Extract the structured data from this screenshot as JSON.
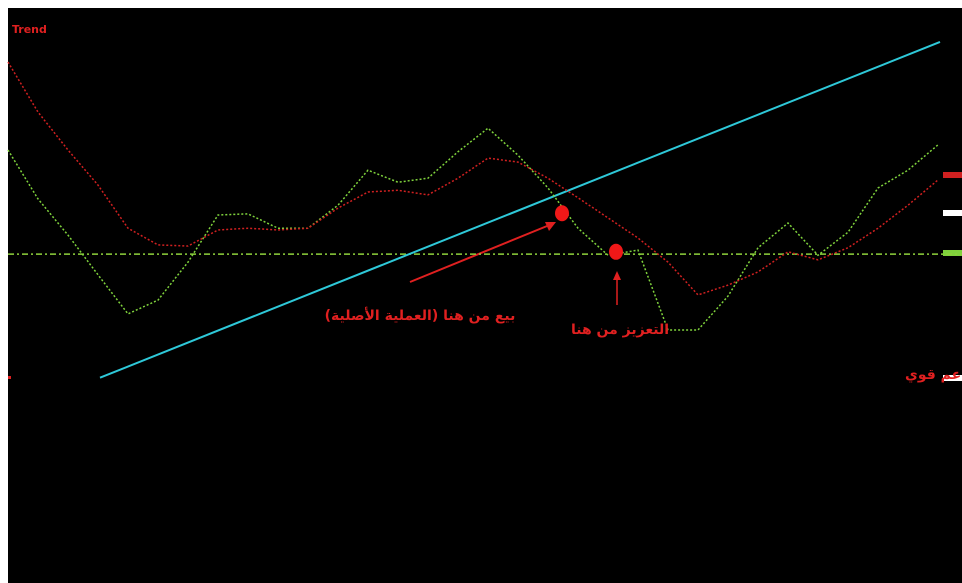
{
  "chart_data": {
    "type": "line",
    "title": "Trend",
    "title_color": "#e02020",
    "ylim": [
      0,
      100
    ],
    "categories": [
      null,
      null,
      null,
      null,
      null,
      null,
      null,
      null,
      null,
      null,
      null,
      null,
      null,
      null,
      null,
      null,
      null,
      null,
      null,
      null,
      null,
      null,
      null,
      null,
      null,
      null,
      null,
      null,
      null,
      null,
      null,
      null
    ],
    "series": [
      {
        "color": "#7fd23c",
        "values": [
          75.3,
          66.8,
          60.5,
          53.6,
          46.8,
          49.2,
          55.8,
          64.0,
          64.2,
          61.7,
          61.7,
          65.7,
          71.8,
          69.7,
          70.4,
          75.0,
          79.1,
          74.4,
          68.7,
          61.7,
          57.0,
          57.9,
          44.0,
          44.0,
          49.9,
          58.3,
          62.6,
          57.0,
          61.0,
          68.7,
          71.8,
          76.2
        ]
      },
      {
        "color": "#d02020",
        "values": [
          90.6,
          81.9,
          75.3,
          69.2,
          61.7,
          58.8,
          58.6,
          61.4,
          61.7,
          61.4,
          61.7,
          65.2,
          68.0,
          68.3,
          67.5,
          70.4,
          73.9,
          73.2,
          70.4,
          67.0,
          63.5,
          60.0,
          55.8,
          50.1,
          51.8,
          54.1,
          57.6,
          56.2,
          58.3,
          61.7,
          65.7,
          70.1
        ]
      }
    ],
    "level": {
      "value": 57.2,
      "color": "#8fd23c"
    },
    "trend_line": {
      "color": "#2ec8d8",
      "values": [
        35.7,
        94.1
      ]
    },
    "annotations": [
      {
        "text": "بيع من هنا (العملية الأصلية)",
        "value": 64.3
      },
      {
        "text": "التعزيز من هنا",
        "value": 57.6
      },
      {
        "text": "دعم قوي",
        "value": 35.7
      }
    ],
    "annotation_color": "#e02020"
  }
}
